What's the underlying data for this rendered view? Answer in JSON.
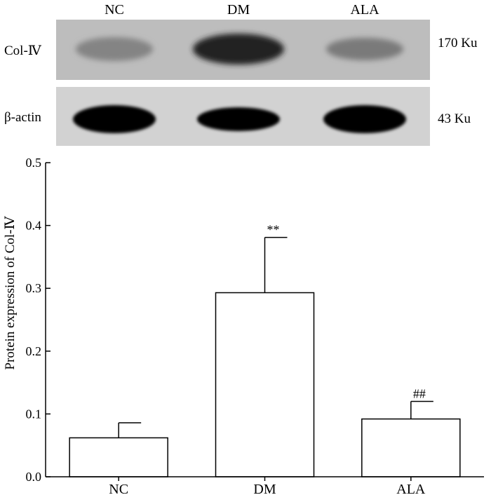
{
  "blot": {
    "lanes": [
      "NC",
      "DM",
      "ALA"
    ],
    "rows": [
      {
        "label": "Col-Ⅳ",
        "size": "170 Ku",
        "band_intensity": [
          0.35,
          0.85,
          0.4
        ]
      },
      {
        "label": "β-actin",
        "size": "43 Ku",
        "band_intensity": [
          1.0,
          1.0,
          1.0
        ]
      }
    ]
  },
  "chart_data": {
    "type": "bar",
    "title": "",
    "xlabel": "",
    "ylabel": "Protein expression of Col-Ⅳ",
    "categories": [
      "NC",
      "DM",
      "ALA"
    ],
    "values": [
      0.062,
      0.293,
      0.092
    ],
    "error": [
      0.024,
      0.088,
      0.028
    ],
    "significance": [
      "",
      "**",
      "##"
    ],
    "ylim": [
      0,
      0.5
    ],
    "yticks": [
      0.0,
      0.1,
      0.2,
      0.3,
      0.4,
      0.5
    ],
    "ytick_labels": [
      "0.0",
      "0.1",
      "0.2",
      "0.3",
      "0.4",
      "0.5"
    ],
    "grid": false,
    "legend": "none",
    "colors": {
      "bar_fill": "#ffffff",
      "stroke": "#000000"
    }
  }
}
